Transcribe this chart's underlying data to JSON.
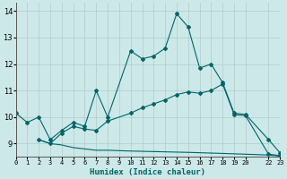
{
  "xlabel": "Humidex (Indice chaleur)",
  "bg_color": "#cce8e8",
  "grid_color": "#b0cccc",
  "line_color": "#006666",
  "line1_x": [
    0,
    1,
    2,
    3,
    4,
    5,
    6,
    7,
    8,
    10,
    11,
    12,
    13,
    14,
    15,
    16,
    17,
    18,
    19,
    20,
    22,
    23
  ],
  "line1_y": [
    10.15,
    9.8,
    10.0,
    9.15,
    9.5,
    9.8,
    9.65,
    11.0,
    10.0,
    12.5,
    12.2,
    12.3,
    12.6,
    13.9,
    13.4,
    11.85,
    12.0,
    11.3,
    10.15,
    10.1,
    9.15,
    8.65
  ],
  "line2_x": [
    2,
    3,
    4,
    5,
    6,
    7,
    8,
    10,
    11,
    12,
    13,
    14,
    15,
    16,
    17,
    18,
    19,
    20,
    22,
    23
  ],
  "line2_y": [
    9.15,
    9.0,
    9.4,
    9.65,
    9.55,
    9.5,
    9.85,
    10.15,
    10.35,
    10.5,
    10.65,
    10.85,
    10.95,
    10.9,
    11.0,
    11.25,
    10.1,
    10.05,
    8.6,
    8.55
  ],
  "line3_x": [
    2,
    3,
    4,
    5,
    6,
    7,
    8,
    10,
    14,
    15,
    18,
    20,
    22,
    23
  ],
  "line3_y": [
    9.15,
    9.0,
    8.95,
    8.85,
    8.8,
    8.75,
    8.75,
    8.72,
    8.68,
    8.67,
    8.63,
    8.6,
    8.57,
    8.53
  ],
  "xlim": [
    0,
    23
  ],
  "ylim": [
    8.5,
    14.3
  ],
  "yticks": [
    9,
    10,
    11,
    12,
    13,
    14
  ],
  "xtick_positions": [
    0,
    1,
    2,
    3,
    4,
    5,
    6,
    7,
    8,
    9,
    10,
    11,
    12,
    13,
    14,
    15,
    16,
    17,
    18,
    19,
    20,
    22,
    23
  ],
  "xtick_labels": [
    "0",
    "1",
    "2",
    "3",
    "4",
    "5",
    "6",
    "7",
    "8",
    "9",
    "10",
    "11",
    "12",
    "13",
    "14",
    "15",
    "16",
    "17",
    "18",
    "19",
    "20",
    "22",
    "23"
  ],
  "marker": "D",
  "markersize": 2.0,
  "linewidth": 0.8
}
